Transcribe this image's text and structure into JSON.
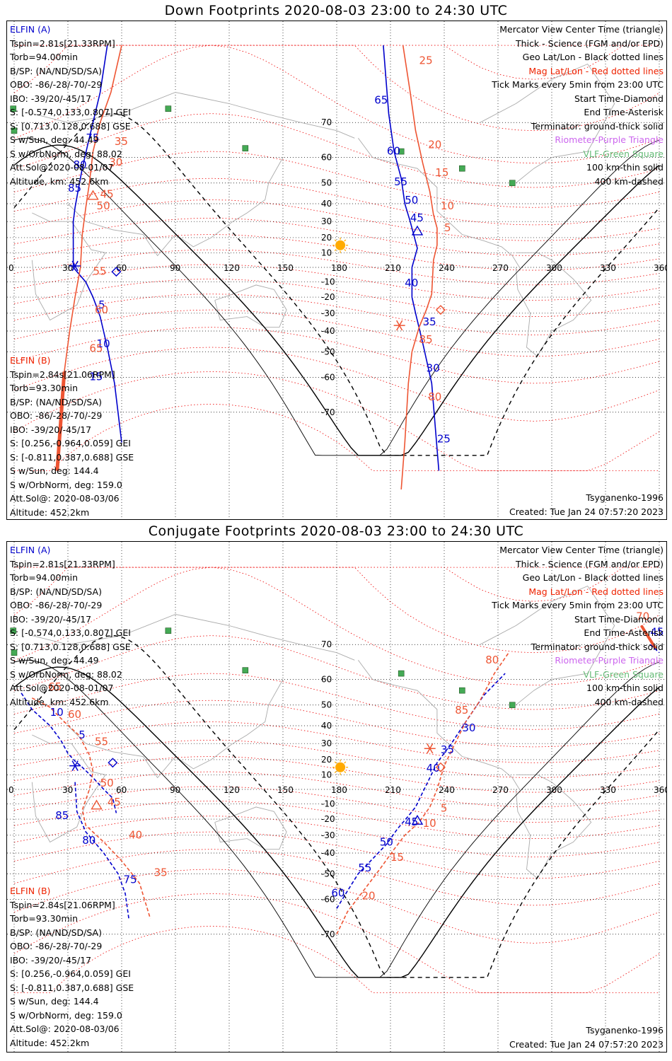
{
  "titles": {
    "down": "Down Footprints 2020-08-03 23:00 to 24:30 UTC",
    "conj": "Conjugate Footprints 2020-08-03 23:00 to 24:30 UTC"
  },
  "elfin_a": {
    "name": "ELFIN (A)",
    "tspin": "Tspin=2.81s[21.33RPM]",
    "torb": "Torb=94.00min",
    "bsp": "B/SP: (NA/ND/SD/SA)",
    "obo": "OBO: -86/-28/-70/-29",
    "ibo": "IBO: -39/20/-45/17",
    "s_gei": "S: [-0.574,0.133,0.807] GEI",
    "s_gse": "S: [0.713,0.128,0.688] GSE",
    "s_sun": "S w/Sun, deg: 44.49",
    "s_orbnorm": "S w/OrbNorm, deg: 88.02",
    "attsol": "Att.Sol@2020-08-01/07",
    "altitude": "Altitude, km: 452.6km"
  },
  "elfin_b": {
    "name": "ELFIN (B)",
    "tspin": "Tspin=2.84s[21.06RPM]",
    "torb": "Torb=93.30min",
    "bsp": "B/SP: (NA/ND/SD/SA)",
    "obo": "OBO: -86/-28/-70/-29",
    "ibo": "IBO: -39/20/-45/17",
    "s_gei": "S: [0.256,-0.964,0.059] GEI",
    "s_gse": "S: [-0.811,0.387,0.688] GSE",
    "s_sun": "S w/Sun, deg: 144.4",
    "s_orbnorm": "S w/OrbNorm, deg: 159.0",
    "attsol": "Att.Sol@: 2020-08-03/06",
    "altitude": "Altitude: 452.2km"
  },
  "legend": {
    "view": "Mercator View Center Time (triangle)",
    "thick": "Thick - Science (FGM and/or EPD)",
    "geo": "Geo Lat/Lon - Black dotted lines",
    "mag": "Mag Lat/Lon - Red dotted lines",
    "ticks": "Tick Marks every 5min from 23:00 UTC",
    "start": "Start Time-Diamond",
    "end": "End Time-Asterisk",
    "terminator": "Terminator: ground-thick solid",
    "riometer": "Riometer-Purple Triangle",
    "vlf": "VLF-Green Square",
    "km100": "100 km-thin solid",
    "km400": "400 km-dashed"
  },
  "footer": {
    "model": "Tsyganenko-1996",
    "created": "Created: Tue Jan 24 07:57:20 2023"
  },
  "axes": {
    "lon_ticks": [
      0,
      30,
      60,
      90,
      120,
      150,
      180,
      210,
      240,
      270,
      300,
      330,
      360
    ],
    "lat_ticks": [
      70,
      60,
      50,
      40,
      30,
      20,
      10,
      -10,
      -20,
      -30,
      -40,
      -50,
      -60,
      -70
    ]
  },
  "colors": {
    "elfin_a": "#0000cc",
    "elfin_b": "#ee5533",
    "mag_grid": "#ee0000",
    "geo_grid": "#000000",
    "coast": "#aaaaaa",
    "sun": "#ffaa00",
    "vlf": "#44aa55"
  },
  "map_data": {
    "vlf_stations": [
      [
        -0.5,
        73
      ],
      [
        0,
        68
      ],
      [
        129,
        63
      ],
      [
        216,
        62
      ],
      [
        250,
        56
      ],
      [
        278,
        50
      ],
      [
        86,
        73
      ]
    ],
    "down": {
      "sun": {
        "lon": 182,
        "lat": 15
      },
      "a_track": [
        [
          52,
          82
        ],
        [
          48,
          76
        ],
        [
          44,
          70
        ],
        [
          41,
          64
        ],
        [
          38,
          56
        ],
        [
          36,
          48
        ],
        [
          34,
          38
        ],
        [
          33,
          30
        ],
        [
          33,
          22
        ],
        [
          33,
          0
        ],
        [
          40,
          -10
        ],
        [
          44,
          -20
        ],
        [
          48,
          -32
        ],
        [
          52,
          -48
        ],
        [
          56,
          -62
        ],
        [
          60,
          -76
        ]
      ],
      "a_ticks": [
        {
          "t": "75",
          "lon": 40,
          "lat": 65
        },
        {
          "t": "80",
          "lon": 33,
          "lat": 56
        },
        {
          "t": "85",
          "lon": 30,
          "lat": 46
        },
        {
          "t": "5",
          "lon": 47,
          "lat": -27
        },
        {
          "t": "10",
          "lon": 46,
          "lat": -48
        },
        {
          "t": "15",
          "lon": 42,
          "lat": -61
        }
      ],
      "a_start": {
        "lon": 57,
        "lat": -3
      },
      "a_end": {
        "lon": 34,
        "lat": 1
      },
      "b_track": [
        [
          60,
          82
        ],
        [
          54,
          76
        ],
        [
          48,
          70
        ],
        [
          44,
          62
        ],
        [
          42,
          50
        ],
        [
          40,
          38
        ],
        [
          38,
          22
        ],
        [
          37,
          0
        ],
        [
          34,
          -20
        ],
        [
          31,
          -40
        ],
        [
          28,
          -58
        ],
        [
          26,
          -72
        ],
        [
          24,
          -80
        ]
      ],
      "b_ticks": [
        {
          "t": "30",
          "lon": 53,
          "lat": 57
        },
        {
          "t": "35",
          "lon": 56,
          "lat": 64
        },
        {
          "t": "45",
          "lon": 48,
          "lat": 43
        },
        {
          "t": "50",
          "lon": 46,
          "lat": 37
        },
        {
          "t": "55",
          "lon": 44,
          "lat": -5
        },
        {
          "t": "60",
          "lon": 45,
          "lat": -30
        },
        {
          "t": "65",
          "lon": 42,
          "lat": -50
        }
      ],
      "b_center": {
        "lon": 44,
        "lat": 44
      },
      "a2_track": [
        [
          206,
          82
        ],
        [
          209,
          72
        ],
        [
          212,
          62
        ],
        [
          216,
          52
        ],
        [
          218,
          40
        ],
        [
          221,
          30
        ],
        [
          225,
          13
        ],
        [
          222,
          0
        ],
        [
          222,
          -20
        ],
        [
          224,
          -30
        ],
        [
          228,
          -46
        ],
        [
          233,
          -62
        ],
        [
          237,
          -80
        ]
      ],
      "a2_ticks": [
        {
          "t": "65",
          "lon": 201,
          "lat": 74
        },
        {
          "t": "60",
          "lon": 208,
          "lat": 61
        },
        {
          "t": "55",
          "lon": 212,
          "lat": 49
        },
        {
          "t": "50",
          "lon": 218,
          "lat": 40
        },
        {
          "t": "45",
          "lon": 221,
          "lat": 30
        },
        {
          "t": "40",
          "lon": 218,
          "lat": -13
        },
        {
          "t": "35",
          "lon": 228,
          "lat": -37
        },
        {
          "t": "30",
          "lon": 230,
          "lat": -58
        },
        {
          "t": "25",
          "lon": 236,
          "lat": -76
        }
      ],
      "a2_center": {
        "lon": 225,
        "lat": 24
      },
      "b2_track": [
        [
          217,
          82
        ],
        [
          221,
          76
        ],
        [
          224,
          68
        ],
        [
          228,
          58
        ],
        [
          232,
          46
        ],
        [
          234,
          34
        ],
        [
          236,
          26
        ],
        [
          236,
          15
        ],
        [
          234,
          5
        ],
        [
          233,
          -18
        ],
        [
          230,
          -28
        ],
        [
          226,
          -38
        ],
        [
          222,
          -50
        ],
        [
          220,
          -62
        ],
        [
          218,
          -76
        ],
        [
          216,
          -82
        ]
      ],
      "b2_ticks": [
        {
          "t": "25",
          "lon": 226,
          "lat": 80
        },
        {
          "t": "20",
          "lon": 231,
          "lat": 63
        },
        {
          "t": "15",
          "lon": 235,
          "lat": 53
        },
        {
          "t": "10",
          "lon": 238,
          "lat": 37
        },
        {
          "t": "5",
          "lon": 240,
          "lat": 24
        },
        {
          "t": "85",
          "lon": 226,
          "lat": -46
        },
        {
          "t": "80",
          "lon": 231,
          "lat": -67
        }
      ],
      "b2_start": {
        "lon": 238,
        "lat": -28
      },
      "b2_end": {
        "lon": 215,
        "lat": -37
      }
    },
    "conj": {
      "sun": {
        "lon": 182,
        "lat": 15
      },
      "a_track": [
        [
          4,
          55
        ],
        [
          10,
          48
        ],
        [
          20,
          40
        ],
        [
          26,
          32
        ],
        [
          30,
          24
        ],
        [
          34,
          19
        ],
        [
          38,
          15
        ],
        [
          44,
          8
        ],
        [
          50,
          0
        ],
        [
          55,
          -6
        ],
        [
          57,
          -16
        ]
      ],
      "a_ticks": [
        {
          "t": "10",
          "lon": 20,
          "lat": 45
        },
        {
          "t": "5",
          "lon": 36,
          "lat": 33
        },
        {
          "t": "85",
          "lon": 23,
          "lat": -20
        },
        {
          "t": "80",
          "lon": 38,
          "lat": -35
        },
        {
          "t": "75",
          "lon": 61,
          "lat": -54
        }
      ],
      "a_start": {
        "lon": 55,
        "lat": 18
      },
      "a_end": {
        "lon": 34,
        "lat": 16
      },
      "a_tail": [
        [
          34,
          5
        ],
        [
          35,
          -15
        ],
        [
          40,
          -28
        ],
        [
          50,
          -40
        ],
        [
          58,
          -50
        ],
        [
          62,
          -58
        ],
        [
          64,
          -66
        ]
      ],
      "b_track": [
        [
          10,
          53
        ],
        [
          20,
          49
        ],
        [
          28,
          42
        ],
        [
          36,
          35
        ],
        [
          42,
          23
        ],
        [
          44,
          12
        ],
        [
          42,
          0
        ],
        [
          38,
          -14
        ],
        [
          40,
          -24
        ],
        [
          50,
          -34
        ],
        [
          60,
          -44
        ],
        [
          70,
          -54
        ],
        [
          76,
          -66
        ]
      ],
      "b_ticks": [
        {
          "t": "65",
          "lon": 19,
          "lat": 56
        },
        {
          "t": "60",
          "lon": 30,
          "lat": 44
        },
        {
          "t": "55",
          "lon": 45,
          "lat": 29
        },
        {
          "t": "50",
          "lon": 48,
          "lat": 2
        },
        {
          "t": "45",
          "lon": 52,
          "lat": -11
        },
        {
          "t": "40",
          "lon": 64,
          "lat": -32
        },
        {
          "t": "35",
          "lon": 78,
          "lat": -51
        }
      ],
      "b_center": {
        "lon": 46,
        "lat": -11
      },
      "a2_track": [
        [
          180,
          -63
        ],
        [
          186,
          -57
        ],
        [
          192,
          -50
        ],
        [
          200,
          -43
        ],
        [
          208,
          -35
        ],
        [
          214,
          -26
        ],
        [
          220,
          -18
        ],
        [
          224,
          -12
        ],
        [
          228,
          -2
        ],
        [
          232,
          8
        ],
        [
          236,
          18
        ],
        [
          244,
          30
        ],
        [
          252,
          42
        ],
        [
          262,
          54
        ],
        [
          274,
          62
        ]
      ],
      "a2_ticks": [
        {
          "t": "60",
          "lon": 177,
          "lat": -59
        },
        {
          "t": "55",
          "lon": 192,
          "lat": -49
        },
        {
          "t": "50",
          "lon": 204,
          "lat": -36
        },
        {
          "t": "45",
          "lon": 218,
          "lat": -24
        },
        {
          "t": "40",
          "lon": 230,
          "lat": 12
        },
        {
          "t": "35",
          "lon": 238,
          "lat": 24
        },
        {
          "t": "30",
          "lon": 250,
          "lat": 37
        }
      ],
      "a2_center": {
        "lon": 225,
        "lat": -21
      },
      "b2_track": [
        [
          180,
          -70
        ],
        [
          186,
          -64
        ],
        [
          196,
          -56
        ],
        [
          204,
          -48
        ],
        [
          212,
          -38
        ],
        [
          218,
          -30
        ],
        [
          226,
          -22
        ],
        [
          232,
          -12
        ],
        [
          236,
          0
        ],
        [
          240,
          16
        ],
        [
          246,
          30
        ],
        [
          252,
          42
        ],
        [
          260,
          52
        ],
        [
          268,
          62
        ],
        [
          276,
          68
        ]
      ],
      "b2_ticks": [
        {
          "t": "20",
          "lon": 194,
          "lat": -60
        },
        {
          "t": "15",
          "lon": 210,
          "lat": -44
        },
        {
          "t": "10",
          "lon": 228,
          "lat": -25
        },
        {
          "t": "5",
          "lon": 238,
          "lat": -15
        },
        {
          "t": "85",
          "lon": 246,
          "lat": 46
        },
        {
          "t": "80",
          "lon": 263,
          "lat": 65
        }
      ],
      "b2_start": {
        "lon": 238,
        "lat": 15
      },
      "b2_end": {
        "lon": 232,
        "lat": 27
      },
      "b_wrap": [
        [
          350,
          74
        ],
        [
          358,
          69
        ]
      ],
      "b_wrap_ticks": [
        {
          "t": "70",
          "lon": 347,
          "lat": 75
        }
      ],
      "a_wrap": [
        [
          355,
          70
        ],
        [
          360,
          68
        ]
      ],
      "a_wrap_ticks": [
        {
          "t": "45",
          "lon": 355,
          "lat": 72
        }
      ]
    }
  }
}
